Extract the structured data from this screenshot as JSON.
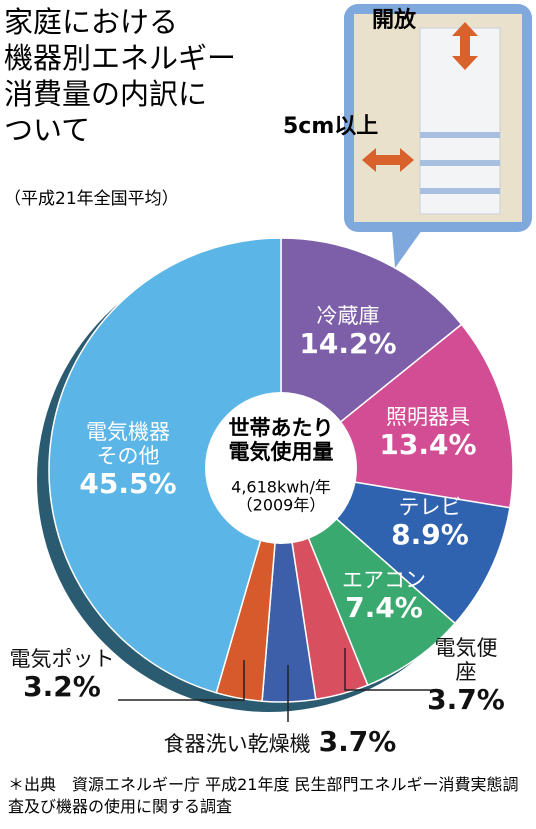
{
  "chart_data": {
    "type": "pie",
    "title": "家庭における\n機器別エネルギー\n消費量の内訳に\nついて",
    "subtitle": "（平成21年全国平均）",
    "center_text": "世帯あたり\n電気使用量",
    "center_note": "4,618kwh/年\n（2009年）",
    "categories": [
      "冷蔵庫",
      "照明器具",
      "テレビ",
      "エアコン",
      "電気便座",
      "食器洗い乾燥機",
      "電気ポット",
      "電気機器\nその他"
    ],
    "values": [
      14.2,
      13.4,
      8.9,
      7.4,
      3.7,
      3.7,
      3.2,
      45.5
    ],
    "value_labels": [
      "14.2%",
      "13.4%",
      "8.9%",
      "7.4%",
      "3.7%",
      "3.7%",
      "3.2%",
      "45.5%"
    ],
    "colors": [
      "#7d5fa9",
      "#d24d94",
      "#2f63b0",
      "#3aa96f",
      "#d8505f",
      "#3d5ea9",
      "#d65a2c",
      "#5bb5e6"
    ],
    "inset_labels": [
      "開放",
      "5cm以上"
    ],
    "source": "＊出典　資源エネルギー庁 平成21年度 民生部門エネルギー消費実態調査及び機器の使用に関する調査"
  }
}
